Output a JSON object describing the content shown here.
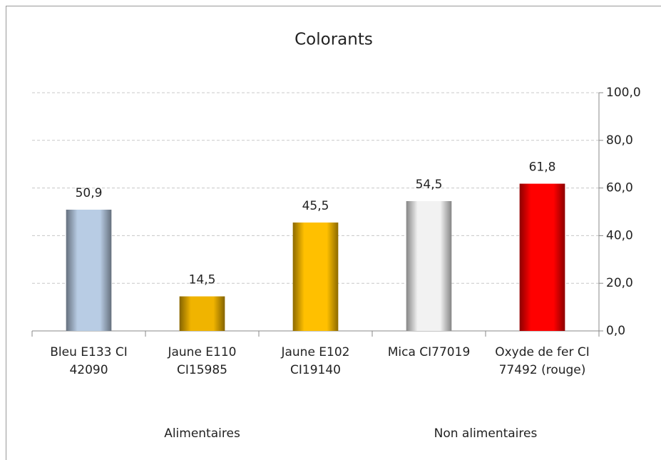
{
  "chart_data": {
    "type": "bar",
    "title": "Colorants",
    "groups": [
      {
        "name": "Alimentaires",
        "categories": [
          "Bleu E133 CI 42090",
          "Jaune E110 CI15985",
          "Jaune E102 CI19140"
        ],
        "values": [
          50.9,
          14.5,
          45.5
        ],
        "value_labels": [
          "50,9",
          "14,5",
          "45,5"
        ],
        "colors": [
          "#b8cce4",
          "#f0b400",
          "#ffc000"
        ]
      },
      {
        "name": "Non alimentaires",
        "categories": [
          "Mica CI77019",
          "Oxyde de fer CI 77492 (rouge)"
        ],
        "values": [
          54.5,
          61.8
        ],
        "value_labels": [
          "54,5",
          "61,8"
        ],
        "colors": [
          "#f2f2f2",
          "#ff0000"
        ]
      }
    ],
    "ylim": [
      0,
      100
    ],
    "yticks": [
      {
        "value": 0,
        "label": "0,0"
      },
      {
        "value": 20,
        "label": "20,0"
      },
      {
        "value": 40,
        "label": "40,0"
      },
      {
        "value": 60,
        "label": "60,0"
      },
      {
        "value": 80,
        "label": "80,0"
      },
      {
        "value": 100,
        "label": "100,0"
      }
    ],
    "grid": true,
    "y_axis_side": "right"
  }
}
